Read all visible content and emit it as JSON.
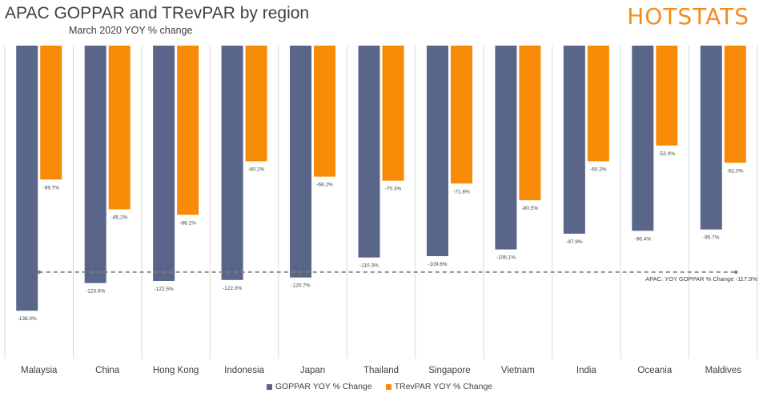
{
  "header": {
    "title": "APAC GOPPAR and TRevPAR by region",
    "subtitle": "March 2020 YOY % change"
  },
  "logo": {
    "text": "HOTSTATS"
  },
  "colors": {
    "goppar": "#5a6689",
    "trevpar": "#f78a06",
    "reference": "#7f7f7f",
    "grid": "#d9d9d9"
  },
  "chart_data": {
    "type": "bar",
    "title": "APAC GOPPAR and TRevPAR by region",
    "subtitle": "March 2020 YOY % change",
    "categories": [
      "Malaysia",
      "China",
      "Hong Kong",
      "Indonesia",
      "Japan",
      "Thailand",
      "Singapore",
      "Vietnam",
      "India",
      "Oceania",
      "Maldives"
    ],
    "series": [
      {
        "name": "GOPPAR YOY % Change",
        "values": [
          -138.0,
          -123.6,
          -122.5,
          -122.0,
          -120.7,
          -110.3,
          -109.6,
          -106.1,
          -97.9,
          -96.4,
          -95.7
        ],
        "labels": [
          "-138.0%",
          "-123.6%",
          "-122.5%",
          "-122.0%",
          "-120.7%",
          "-110.3%",
          "-109.6%",
          "-106.1%",
          "-97.9%",
          "-96.4%",
          "-95.7%"
        ]
      },
      {
        "name": "TRevPAR YOY % Change",
        "values": [
          -69.7,
          -85.2,
          -88.1,
          -60.2,
          -68.2,
          -70.3,
          -71.8,
          -80.5,
          -60.2,
          -52.0,
          -61.0
        ],
        "labels": [
          "-69.7%",
          "-85.2%",
          "-88.1%",
          "-60.2%",
          "-68.2%",
          "-70.3%",
          "-71.8%",
          "-80.5%",
          "-60.2%",
          "-52.0%",
          "-61.0%"
        ]
      }
    ],
    "reference_line": {
      "value": -117.9,
      "label": "APAC: YOY GOPPAR % Change -117.9%",
      "style": "dashed"
    },
    "ylim": [
      -160,
      0
    ],
    "legend": "bottom",
    "grid": "vertical category separators"
  }
}
